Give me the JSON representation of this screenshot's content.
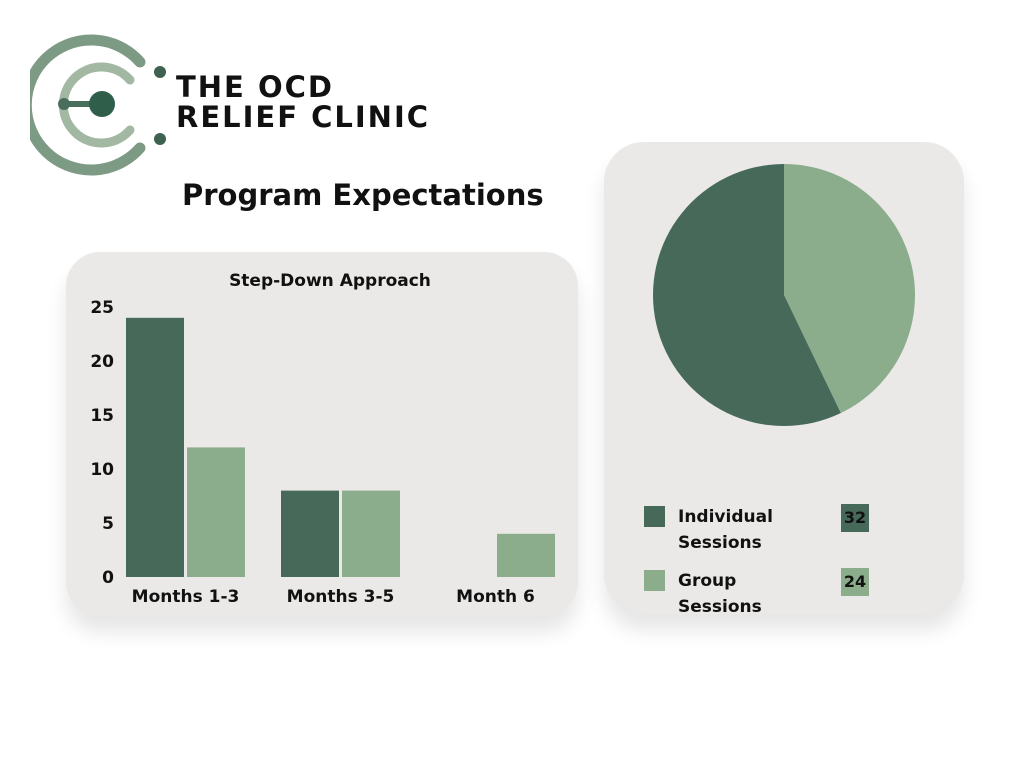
{
  "brand": {
    "line1": "THE OCD",
    "line2": "RELIEF CLINIC"
  },
  "page_title": "Program Expectations",
  "colors": {
    "dark": "#46695a",
    "light": "#8bad8c",
    "card_bg": "#ebe9e7"
  },
  "chart_data": [
    {
      "type": "bar",
      "title": "Step-Down Approach",
      "categories": [
        "Months 1-3",
        "Months 3-5",
        "Month 6"
      ],
      "series": [
        {
          "name": "Individual Sessions",
          "values": [
            24,
            8,
            0
          ]
        },
        {
          "name": "Group Sessions",
          "values": [
            12,
            8,
            4
          ]
        }
      ],
      "ylim": [
        0,
        25
      ],
      "yticks": [
        0,
        5,
        10,
        15,
        20,
        25
      ],
      "xlabel": "",
      "ylabel": "",
      "grid": false
    },
    {
      "type": "pie",
      "labels": [
        "Individual Sessions",
        "Group Sessions"
      ],
      "values": [
        32,
        24
      ],
      "legend": [
        {
          "label": "Individual Sessions",
          "value": "32"
        },
        {
          "label": "Group Sessions",
          "value": "24"
        }
      ]
    }
  ]
}
